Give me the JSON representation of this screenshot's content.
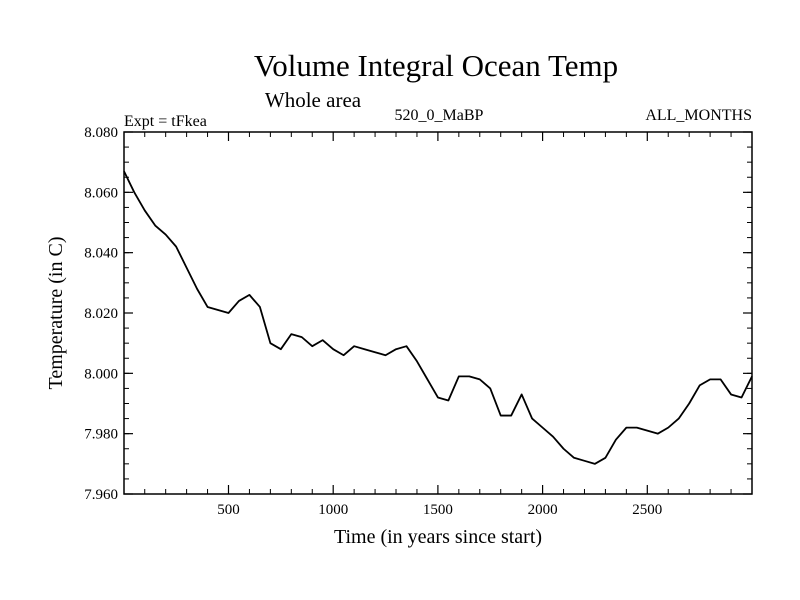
{
  "chart_data": {
    "type": "line",
    "title": "Volume Integral Ocean Temp",
    "subtitle": "Whole area",
    "annotations": {
      "left": "Expt = tFkea",
      "center": "520_0_MaBP",
      "right": "ALL_MONTHS"
    },
    "xlabel": "Time (in years since start)",
    "ylabel": "Temperature (in C)",
    "xlim": [
      1,
      3000
    ],
    "ylim": [
      7.96,
      8.08
    ],
    "x_ticks": [
      500,
      1000,
      1500,
      2000,
      2500
    ],
    "y_ticks": [
      7.96,
      7.98,
      8.0,
      8.02,
      8.04,
      8.06,
      8.08
    ],
    "x_tick_labels": [
      "500",
      "1000",
      "1500",
      "2000",
      "2500"
    ],
    "y_tick_labels": [
      "7.960",
      "7.980",
      "8.000",
      "8.020",
      "8.040",
      "8.060",
      "8.080"
    ],
    "grid": false,
    "line_color": "#000000",
    "series": [
      {
        "x": [
          1,
          50,
          100,
          150,
          200,
          250,
          300,
          350,
          400,
          450,
          500,
          550,
          600,
          650,
          700,
          750,
          800,
          850,
          900,
          950,
          1000,
          1050,
          1100,
          1150,
          1200,
          1250,
          1300,
          1350,
          1400,
          1450,
          1500,
          1550,
          1600,
          1650,
          1700,
          1750,
          1800,
          1850,
          1900,
          1950,
          2000,
          2050,
          2100,
          2150,
          2200,
          2250,
          2300,
          2350,
          2400,
          2450,
          2500,
          2550,
          2600,
          2650,
          2700,
          2750,
          2800,
          2850,
          2900,
          2950,
          3000
        ],
        "values": [
          8.067,
          8.06,
          8.054,
          8.049,
          8.046,
          8.042,
          8.035,
          8.028,
          8.022,
          8.021,
          8.02,
          8.024,
          8.026,
          8.022,
          8.01,
          8.008,
          8.013,
          8.012,
          8.009,
          8.011,
          8.008,
          8.006,
          8.009,
          8.008,
          8.007,
          8.006,
          8.008,
          8.009,
          8.004,
          7.998,
          7.992,
          7.991,
          7.999,
          7.999,
          7.998,
          7.995,
          7.986,
          7.986,
          7.993,
          7.985,
          7.982,
          7.979,
          7.975,
          7.972,
          7.971,
          7.97,
          7.972,
          7.978,
          7.982,
          7.982,
          7.981,
          7.98,
          7.982,
          7.985,
          7.99,
          7.996,
          7.998,
          7.998,
          7.993,
          7.992,
          7.999
        ]
      }
    ]
  }
}
